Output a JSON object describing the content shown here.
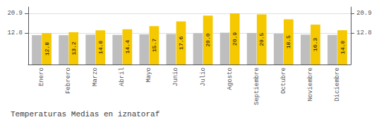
{
  "chart_data": {
    "type": "bar",
    "title": "Temperaturas Medias en iznatoraf",
    "categories": [
      "Enero",
      "Febrero",
      "Marzo",
      "Abril",
      "Mayo",
      "Junio",
      "Julio",
      "Agosto",
      "Septiembre",
      "Octubre",
      "Noviembre",
      "Diciembre"
    ],
    "series": [
      {
        "color": "#BEBEBE",
        "values": [
          12.0,
          12.0,
          12.2,
          12.1,
          12.3,
          12.5,
          12.8,
          13.0,
          12.9,
          12.6,
          12.2,
          12.1
        ]
      },
      {
        "color": "#F5C800",
        "values": [
          12.8,
          13.2,
          14.0,
          14.4,
          15.7,
          17.6,
          20.0,
          20.9,
          20.5,
          18.5,
          16.3,
          14.0
        ],
        "data_labels": true,
        "value_labels": [
          "12.8",
          "13.2",
          "14.0",
          "14.4",
          "15.7",
          "17.6",
          "20.0",
          "20.9",
          "20.5",
          "18.5",
          "16.3",
          "14.0"
        ]
      }
    ],
    "ylim": [
      0,
      23.5
    ],
    "yticks": [
      12.8,
      20.9
    ],
    "grid": true
  }
}
